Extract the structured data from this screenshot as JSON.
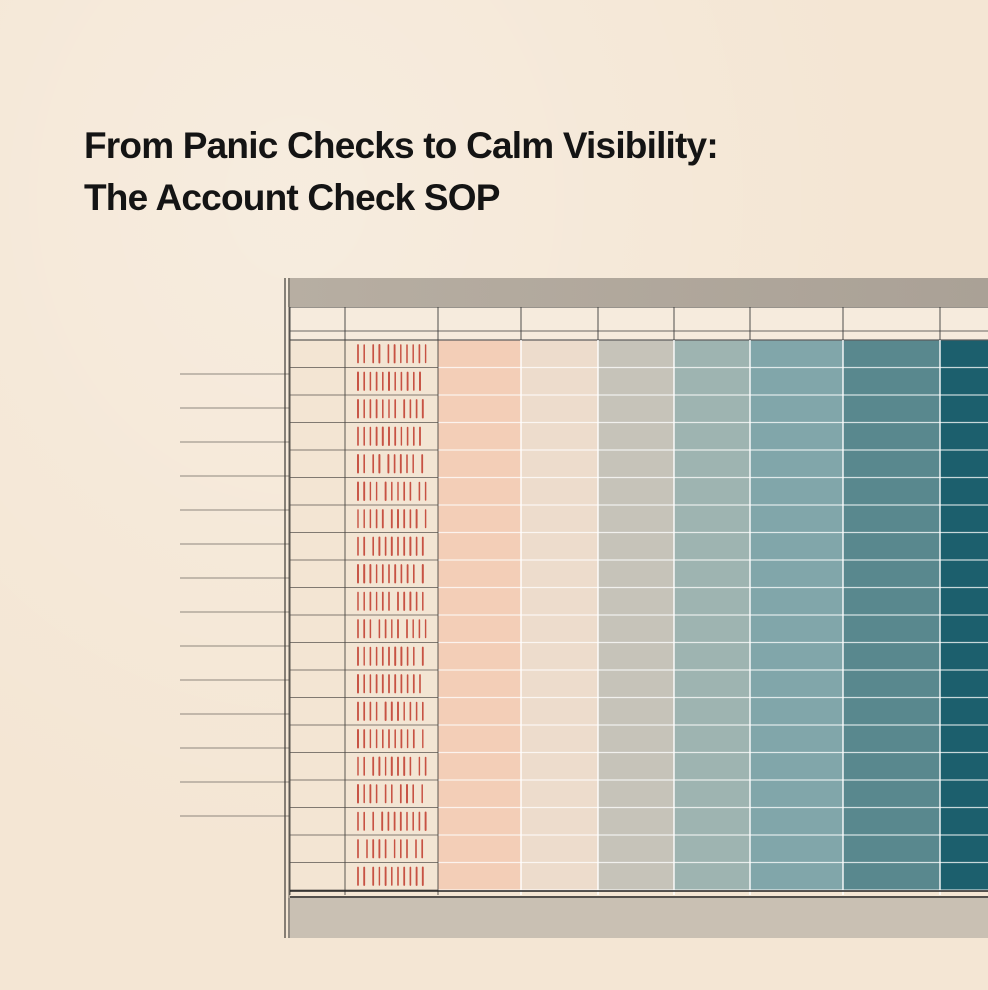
{
  "header": {
    "title_line_1": "From Panic Checks to Calm Visibility:",
    "title_line_2": "The Account Check SOP"
  },
  "illustration": {
    "subject": "ledger-spreadsheet",
    "row_count": 20,
    "column_shades": [
      "#f3e5d3",
      "#f3e5d3",
      "#f3cbb3",
      "#ecdac9",
      "#c3c0b5",
      "#98b0ad",
      "#7aa1a5",
      "#4f8187",
      "#0e5564"
    ],
    "tally_color": "#c0392b",
    "frame_color": "#b9b1a5",
    "line_color": "#3b3b3b"
  }
}
